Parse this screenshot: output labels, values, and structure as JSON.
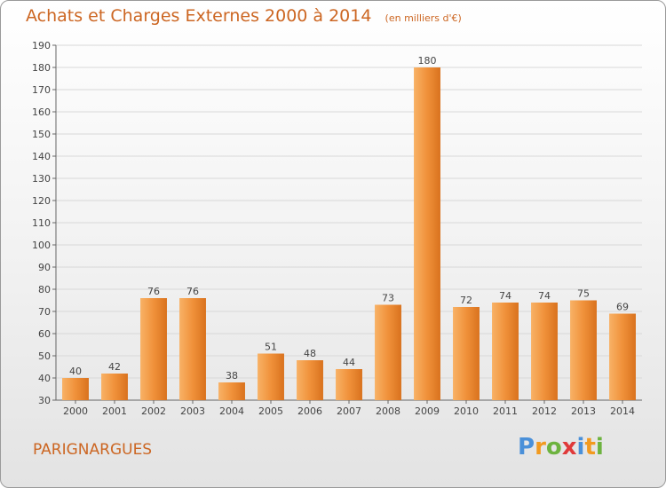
{
  "title": "Achats et Charges Externes 2000 à 2014",
  "subtitle": "(en milliers d'€)",
  "commune": "PARIGNARGUES",
  "logo": {
    "text": "Proxiti",
    "letters": [
      "P",
      "r",
      "o",
      "x",
      "i",
      "t",
      "i"
    ],
    "colors": [
      "#4a90d9",
      "#f29a1f",
      "#6db33f",
      "#e03a3a",
      "#4a90d9",
      "#f29a1f",
      "#6db33f"
    ]
  },
  "colors": {
    "bar_light": "#f6a85a",
    "bar_dark": "#d9721e",
    "title": "#cc6622",
    "axis": "#555555"
  },
  "chart_data": {
    "type": "bar",
    "categories": [
      "2000",
      "2001",
      "2002",
      "2003",
      "2004",
      "2005",
      "2006",
      "2007",
      "2008",
      "2009",
      "2010",
      "2011",
      "2012",
      "2013",
      "2014"
    ],
    "values": [
      40,
      42,
      76,
      76,
      38,
      51,
      48,
      44,
      73,
      180,
      72,
      74,
      74,
      75,
      69
    ],
    "data_labels": [
      "40",
      "42",
      "76",
      "76",
      "38",
      "51",
      "48",
      "44",
      "73",
      "180",
      "72",
      "74",
      "74",
      "75",
      "69"
    ],
    "ylim": [
      30,
      190
    ],
    "yticks": [
      30,
      40,
      50,
      60,
      70,
      80,
      90,
      100,
      110,
      120,
      130,
      140,
      150,
      160,
      170,
      180,
      190
    ],
    "grid": true
  }
}
